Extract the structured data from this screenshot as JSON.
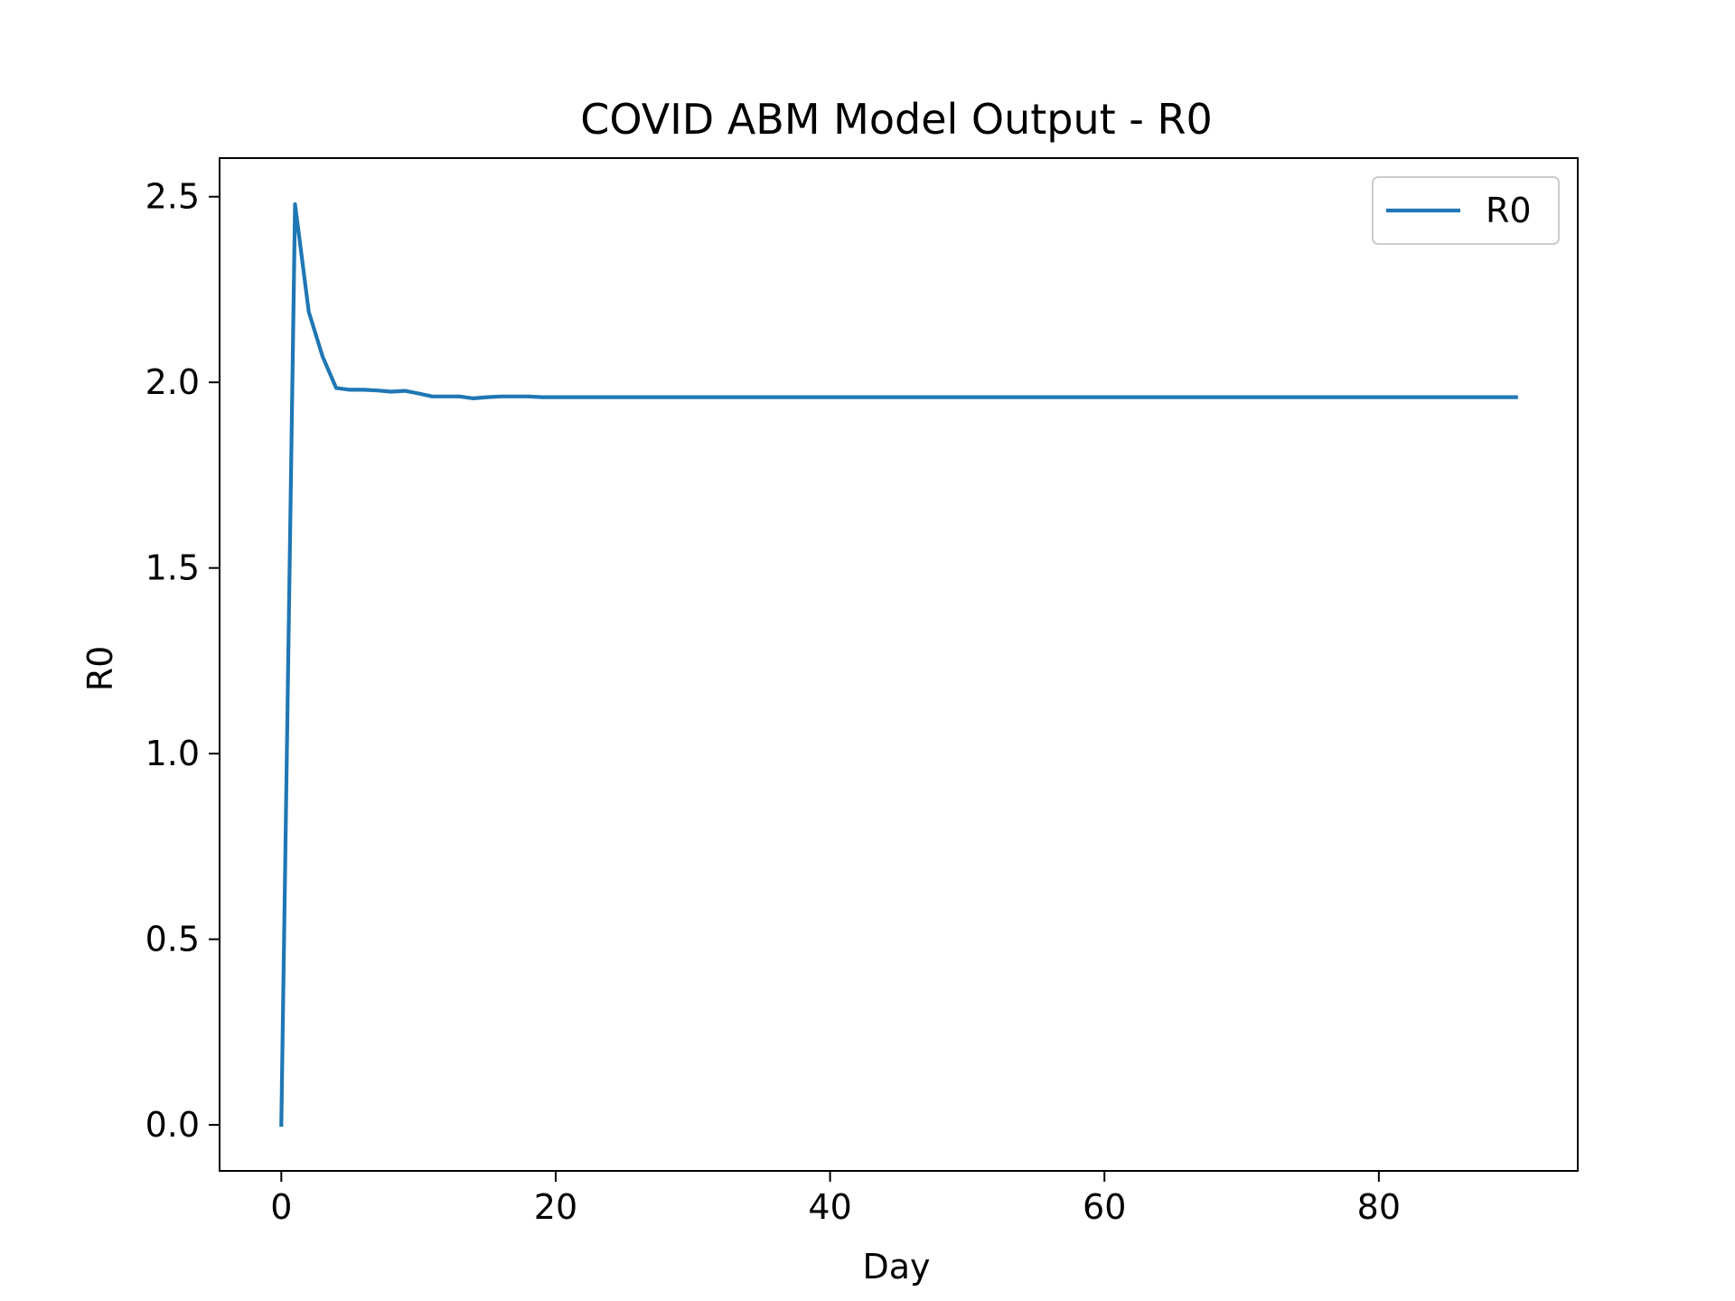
{
  "chart_data": {
    "type": "line",
    "title": "COVID ABM Model Output - R0",
    "xlabel": "Day",
    "ylabel": "R0",
    "xlim": [
      -4.5,
      94.5
    ],
    "ylim": [
      -0.124,
      2.604
    ],
    "xticks": [
      0,
      20,
      40,
      60,
      80
    ],
    "xtick_labels": [
      "0",
      "20",
      "40",
      "60",
      "80"
    ],
    "yticks": [
      0.0,
      0.5,
      1.0,
      1.5,
      2.0,
      2.5
    ],
    "ytick_labels": [
      "0.0",
      "0.5",
      "1.0",
      "1.5",
      "2.0",
      "2.5"
    ],
    "grid": false,
    "legend_position": "top-right",
    "series": [
      {
        "name": "R0",
        "color": "#1f77b4",
        "x": [
          0,
          1,
          2,
          3,
          4,
          5,
          6,
          7,
          8,
          9,
          10,
          11,
          12,
          13,
          14,
          15,
          16,
          17,
          18,
          19,
          20,
          25,
          30,
          40,
          50,
          60,
          70,
          80,
          90
        ],
        "y": [
          0.0,
          2.48,
          2.19,
          2.07,
          1.985,
          1.98,
          1.98,
          1.978,
          1.975,
          1.977,
          1.97,
          1.962,
          1.962,
          1.962,
          1.957,
          1.96,
          1.962,
          1.962,
          1.962,
          1.96,
          1.96,
          1.96,
          1.96,
          1.96,
          1.96,
          1.96,
          1.96,
          1.96,
          1.96
        ]
      }
    ]
  }
}
